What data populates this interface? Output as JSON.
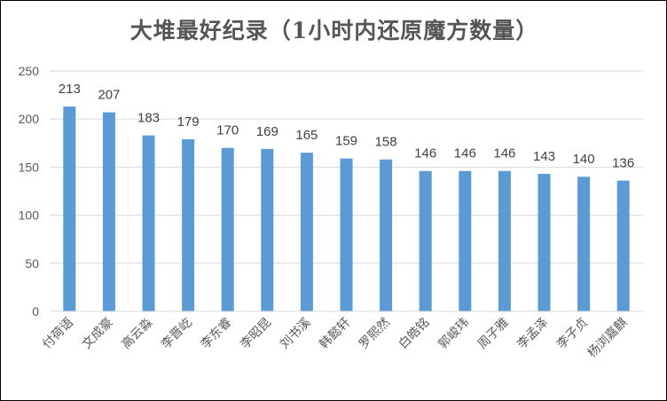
{
  "chart_data": {
    "type": "bar",
    "title": "大堆最好纪录（1小时内还原魔方数量）",
    "xlabel": "",
    "ylabel": "",
    "categories": [
      "付荷语",
      "文成豪",
      "高云淼",
      "李晋屹",
      "李东睿",
      "李昭昆",
      "刘书溪",
      "韩懿轩",
      "罗熙然",
      "白皓铭",
      "郭峻玮",
      "周子雅",
      "李孟泽",
      "李子贞",
      "杨浏嘉麒"
    ],
    "values": [
      213,
      207,
      183,
      179,
      170,
      169,
      165,
      159,
      158,
      146,
      146,
      146,
      143,
      140,
      136
    ],
    "ylim": [
      0,
      250
    ],
    "yticks": [
      0,
      50,
      100,
      150,
      200,
      250
    ],
    "grid": true,
    "legend": "none",
    "bar_color": "#5B9BD5"
  }
}
